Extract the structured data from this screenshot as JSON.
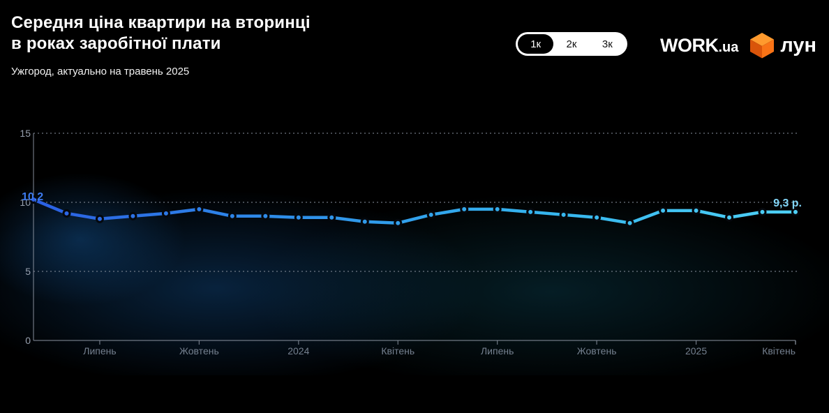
{
  "header": {
    "title_line1": "Середня ціна квартири на вторинці",
    "title_line2": "в роках заробітної плати",
    "subtitle": "Ужгород, актуально на травень 2025"
  },
  "toggle": {
    "options": [
      {
        "label": "1к",
        "selected": true
      },
      {
        "label": "2к",
        "selected": false
      },
      {
        "label": "3к",
        "selected": false
      }
    ]
  },
  "logos": {
    "work": {
      "text": "WORK",
      "suffix": ".ua"
    },
    "lun": {
      "text": "лун",
      "cube_colors": {
        "top": "#ff9a2e",
        "left": "#d9540a",
        "right": "#f97316"
      }
    }
  },
  "chart_data": {
    "type": "line",
    "title": "Середня ціна квартири на вторинці в роках заробітної плати",
    "xlabel": "",
    "ylabel": "",
    "ylim": [
      0,
      15
    ],
    "yticks": [
      0,
      5,
      10,
      15
    ],
    "grid": "dotted horizontal lines at 5, 10, 15",
    "values": [
      10.2,
      9.2,
      8.8,
      9.0,
      9.2,
      9.5,
      9.0,
      9.0,
      8.9,
      8.9,
      8.6,
      8.5,
      9.1,
      9.5,
      9.5,
      9.3,
      9.1,
      8.9,
      8.5,
      9.4,
      9.4,
      8.9,
      9.3,
      9.3
    ],
    "x_tick_labels": [
      {
        "index": 2,
        "label": "Липень"
      },
      {
        "index": 5,
        "label": "Жовтень"
      },
      {
        "index": 8,
        "label": "2024"
      },
      {
        "index": 11,
        "label": "Квітень"
      },
      {
        "index": 14,
        "label": "Липень"
      },
      {
        "index": 17,
        "label": "Жовтень"
      },
      {
        "index": 20,
        "label": "2025"
      },
      {
        "index": 23,
        "label": "Квітень"
      }
    ],
    "annotations": {
      "first_point": "10,2",
      "last_point": "9,3 р."
    },
    "colors": {
      "line_gradient": [
        "#2b5fe3",
        "#2e8ee9",
        "#35b5ee",
        "#4ed0f5"
      ],
      "point_stroke": "#05080d",
      "grid": "#848c99",
      "axis": "#8b93a0",
      "y_tick_text": "#97a0ae",
      "x_tick_text": "#75808f",
      "first_label_color": "#3d7bf0",
      "last_label_color": "#82d6f8",
      "glow_blue": "#10457a",
      "glow_teal": "#0c4152"
    }
  }
}
